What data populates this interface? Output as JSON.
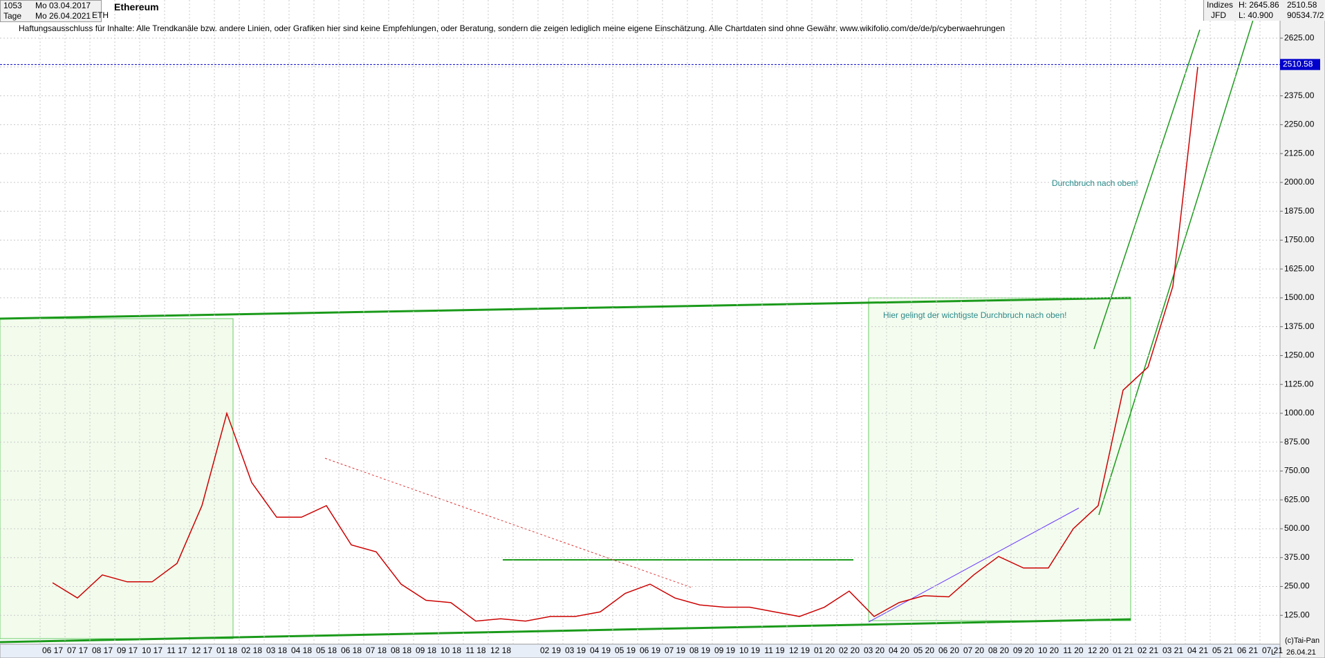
{
  "header": {
    "bars": "1053",
    "from_date": "Mo 03.04.2017",
    "period": "Tage",
    "to_date": "Mo 26.04.2021",
    "symbol": "ETH",
    "name": "Ethereum",
    "group": "Indizes",
    "source": "JFD",
    "high": "H: 2645.86",
    "low": "L: 40.900",
    "volume": "90534.7/2",
    "disclaimer": "Haftungsausschluss für Inhalte: Alle Trendkanäle bzw. andere Linien, oder Grafiken hier sind keine Empfehlungen, oder Beratung, sondern die zeigen lediglich meine eigene Einschätzung. Alle Chartdaten sind ohne Gewähr.  www.wikifolio.com/de/de/p/cyberwaehrungen",
    "copyright": "(c)Tai-Pan",
    "date": "26.04.21",
    "scale_mode": "L"
  },
  "chart_data": {
    "type": "line",
    "title": "Ethereum",
    "categories": [
      "06 17",
      "07 17",
      "08 17",
      "09 17",
      "10 17",
      "11 17",
      "12 17",
      "01 18",
      "02 18",
      "03 18",
      "04 18",
      "05 18",
      "06 18",
      "07 18",
      "08 18",
      "09 18",
      "10 18",
      "11 18",
      "12 18",
      null,
      "02 19",
      "03 19",
      "04 19",
      "05 19",
      "06 19",
      "07 19",
      "08 19",
      "09 19",
      "10 19",
      "11 19",
      "12 19",
      "01 20",
      "02 20",
      "03 20",
      "04 20",
      "05 20",
      "06 20",
      "07 20",
      "08 20",
      "09 20",
      "10 20",
      "11 20",
      "12 20",
      "01 21",
      "02 21",
      "03 21",
      "04 21",
      "05 21",
      "06 21",
      "07 21"
    ],
    "series": [
      {
        "name": "ETH",
        "color": "#cc0000",
        "values": [
          266,
          200,
          300,
          270,
          270,
          350,
          600,
          1000,
          700,
          550,
          550,
          600,
          430,
          400,
          260,
          190,
          180,
          100,
          110,
          100,
          120,
          120,
          140,
          220,
          260,
          200,
          170,
          160,
          160,
          140,
          120,
          160,
          230,
          120,
          180,
          210,
          205,
          300,
          380,
          330,
          330,
          500,
          600,
          1100,
          1200,
          1550,
          2500,
          null,
          null,
          null
        ]
      }
    ],
    "ylim": [
      0,
      2790
    ],
    "yticks": [
      {
        "value": 125,
        "label": "125.00"
      },
      {
        "value": 250,
        "label": "250.00"
      },
      {
        "value": 375,
        "label": "375.00"
      },
      {
        "value": 500,
        "label": "500.00"
      },
      {
        "value": 625,
        "label": "625.00"
      },
      {
        "value": 750,
        "label": "750.00"
      },
      {
        "value": 875,
        "label": "875.00"
      },
      {
        "value": 1000,
        "label": "1000.00"
      },
      {
        "value": 1125,
        "label": "1125.00"
      },
      {
        "value": 1250,
        "label": "1250.00"
      },
      {
        "value": 1375,
        "label": "1375.00"
      },
      {
        "value": 1500,
        "label": "1500.00"
      },
      {
        "value": 1625,
        "label": "1625.00"
      },
      {
        "value": 1750,
        "label": "1750.00"
      },
      {
        "value": 1875,
        "label": "1875.00"
      },
      {
        "value": 2000,
        "label": "2000.00"
      },
      {
        "value": 2125,
        "label": "2125.00"
      },
      {
        "value": 2250,
        "label": "2250.00"
      },
      {
        "value": 2375,
        "label": "2375.00"
      },
      {
        "value": 2500,
        "label": "2500.00"
      },
      {
        "value": 2625,
        "label": "2625.00"
      }
    ],
    "last_price": 2510.58,
    "grid": true,
    "annotations": [
      "Durchbruch nach oben!",
      "Hier gelingt der wichtigste Durchbruch nach oben!"
    ]
  }
}
